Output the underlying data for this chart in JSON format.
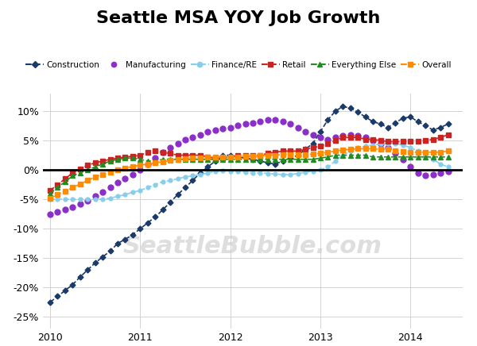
{
  "title": "Seattle MSA YOY Job Growth",
  "background_color": "#ffffff",
  "watermark": "SeattleBubble.com",
  "ylim": [
    -0.27,
    0.13
  ],
  "yticks": [
    -0.25,
    -0.2,
    -0.15,
    -0.1,
    -0.05,
    0.0,
    0.05,
    0.1
  ],
  "xlim": [
    2009.92,
    2014.58
  ],
  "series": {
    "Construction": {
      "color": "#1a3a6b",
      "marker": "D",
      "markersize": 3.5,
      "linestyle": "--",
      "linewidth": 1.2,
      "data_x": [
        2010.0,
        2010.083,
        2010.167,
        2010.25,
        2010.333,
        2010.417,
        2010.5,
        2010.583,
        2010.667,
        2010.75,
        2010.833,
        2010.917,
        2011.0,
        2011.083,
        2011.167,
        2011.25,
        2011.333,
        2011.417,
        2011.5,
        2011.583,
        2011.667,
        2011.75,
        2011.833,
        2011.917,
        2012.0,
        2012.083,
        2012.167,
        2012.25,
        2012.333,
        2012.417,
        2012.5,
        2012.583,
        2012.667,
        2012.75,
        2012.833,
        2012.917,
        2013.0,
        2013.083,
        2013.167,
        2013.25,
        2013.333,
        2013.417,
        2013.5,
        2013.583,
        2013.667,
        2013.75,
        2013.833,
        2013.917,
        2014.0,
        2014.083,
        2014.167,
        2014.25,
        2014.333,
        2014.417
      ],
      "data_y": [
        -0.225,
        -0.215,
        -0.205,
        -0.195,
        -0.182,
        -0.17,
        -0.158,
        -0.148,
        -0.138,
        -0.125,
        -0.118,
        -0.11,
        -0.1,
        -0.09,
        -0.08,
        -0.068,
        -0.055,
        -0.042,
        -0.03,
        -0.018,
        -0.005,
        0.005,
        0.015,
        0.025,
        0.025,
        0.022,
        0.02,
        0.018,
        0.015,
        0.012,
        0.01,
        0.015,
        0.02,
        0.025,
        0.035,
        0.045,
        0.065,
        0.085,
        0.1,
        0.108,
        0.105,
        0.098,
        0.09,
        0.082,
        0.078,
        0.072,
        0.08,
        0.088,
        0.09,
        0.082,
        0.075,
        0.068,
        0.072,
        0.078
      ]
    },
    "Manufacturing": {
      "color": "#8b2fc8",
      "marker": "o",
      "markersize": 5,
      "linestyle": "none",
      "linewidth": 0,
      "data_x": [
        2010.0,
        2010.083,
        2010.167,
        2010.25,
        2010.333,
        2010.417,
        2010.5,
        2010.583,
        2010.667,
        2010.75,
        2010.833,
        2010.917,
        2011.0,
        2011.083,
        2011.167,
        2011.25,
        2011.333,
        2011.417,
        2011.5,
        2011.583,
        2011.667,
        2011.75,
        2011.833,
        2011.917,
        2012.0,
        2012.083,
        2012.167,
        2012.25,
        2012.333,
        2012.417,
        2012.5,
        2012.583,
        2012.667,
        2012.75,
        2012.833,
        2012.917,
        2013.0,
        2013.083,
        2013.167,
        2013.25,
        2013.333,
        2013.417,
        2013.5,
        2013.583,
        2013.667,
        2013.75,
        2013.833,
        2013.917,
        2014.0,
        2014.083,
        2014.167,
        2014.25,
        2014.333,
        2014.417
      ],
      "data_y": [
        -0.075,
        -0.072,
        -0.068,
        -0.063,
        -0.058,
        -0.052,
        -0.045,
        -0.038,
        -0.03,
        -0.022,
        -0.015,
        -0.008,
        0.0,
        0.01,
        0.02,
        0.03,
        0.038,
        0.045,
        0.052,
        0.055,
        0.06,
        0.065,
        0.068,
        0.07,
        0.072,
        0.075,
        0.078,
        0.08,
        0.082,
        0.085,
        0.085,
        0.082,
        0.078,
        0.072,
        0.065,
        0.06,
        0.055,
        0.052,
        0.055,
        0.058,
        0.06,
        0.058,
        0.055,
        0.05,
        0.045,
        0.038,
        0.028,
        0.018,
        0.005,
        -0.005,
        -0.01,
        -0.008,
        -0.005,
        -0.003
      ]
    },
    "Finance/RE": {
      "color": "#87ceeb",
      "marker": "o",
      "markersize": 3.5,
      "linestyle": "--",
      "linewidth": 1.2,
      "data_x": [
        2010.0,
        2010.083,
        2010.167,
        2010.25,
        2010.333,
        2010.417,
        2010.5,
        2010.583,
        2010.667,
        2010.75,
        2010.833,
        2010.917,
        2011.0,
        2011.083,
        2011.167,
        2011.25,
        2011.333,
        2011.417,
        2011.5,
        2011.583,
        2011.667,
        2011.75,
        2011.833,
        2011.917,
        2012.0,
        2012.083,
        2012.167,
        2012.25,
        2012.333,
        2012.417,
        2012.5,
        2012.583,
        2012.667,
        2012.75,
        2012.833,
        2012.917,
        2013.0,
        2013.083,
        2013.167,
        2013.25,
        2013.333,
        2013.417,
        2013.5,
        2013.583,
        2013.667,
        2013.75,
        2013.833,
        2013.917,
        2014.0,
        2014.083,
        2014.167,
        2014.25,
        2014.333,
        2014.417
      ],
      "data_y": [
        -0.05,
        -0.05,
        -0.05,
        -0.05,
        -0.05,
        -0.05,
        -0.05,
        -0.05,
        -0.048,
        -0.045,
        -0.042,
        -0.038,
        -0.035,
        -0.03,
        -0.025,
        -0.02,
        -0.018,
        -0.015,
        -0.012,
        -0.01,
        -0.008,
        -0.005,
        -0.003,
        -0.001,
        -0.002,
        -0.003,
        -0.004,
        -0.005,
        -0.005,
        -0.006,
        -0.007,
        -0.008,
        -0.008,
        -0.006,
        -0.004,
        -0.002,
        0.0,
        0.005,
        0.015,
        0.025,
        0.032,
        0.038,
        0.04,
        0.042,
        0.044,
        0.045,
        0.045,
        0.042,
        0.038,
        0.032,
        0.025,
        0.018,
        0.01,
        0.005
      ]
    },
    "Retail": {
      "color": "#cc2222",
      "marker": "s",
      "markersize": 4.5,
      "linestyle": "--",
      "linewidth": 1.2,
      "data_x": [
        2010.0,
        2010.083,
        2010.167,
        2010.25,
        2010.333,
        2010.417,
        2010.5,
        2010.583,
        2010.667,
        2010.75,
        2010.833,
        2010.917,
        2011.0,
        2011.083,
        2011.167,
        2011.25,
        2011.333,
        2011.417,
        2011.5,
        2011.583,
        2011.667,
        2011.75,
        2011.833,
        2011.917,
        2012.0,
        2012.083,
        2012.167,
        2012.25,
        2012.333,
        2012.417,
        2012.5,
        2012.583,
        2012.667,
        2012.75,
        2012.833,
        2012.917,
        2013.0,
        2013.083,
        2013.167,
        2013.25,
        2013.333,
        2013.417,
        2013.5,
        2013.583,
        2013.667,
        2013.75,
        2013.833,
        2013.917,
        2014.0,
        2014.083,
        2014.167,
        2014.25,
        2014.333,
        2014.417
      ],
      "data_y": [
        -0.035,
        -0.025,
        -0.015,
        -0.005,
        0.002,
        0.008,
        0.012,
        0.015,
        0.018,
        0.02,
        0.022,
        0.023,
        0.025,
        0.03,
        0.032,
        0.03,
        0.028,
        0.025,
        0.025,
        0.025,
        0.025,
        0.022,
        0.02,
        0.02,
        0.022,
        0.025,
        0.025,
        0.025,
        0.025,
        0.028,
        0.03,
        0.032,
        0.032,
        0.032,
        0.035,
        0.038,
        0.04,
        0.045,
        0.05,
        0.055,
        0.055,
        0.055,
        0.052,
        0.052,
        0.05,
        0.048,
        0.048,
        0.048,
        0.048,
        0.048,
        0.05,
        0.052,
        0.055,
        0.06
      ]
    },
    "Everything Else": {
      "color": "#228b22",
      "marker": "^",
      "markersize": 4.5,
      "linestyle": "--",
      "linewidth": 1.2,
      "data_x": [
        2010.0,
        2010.083,
        2010.167,
        2010.25,
        2010.333,
        2010.417,
        2010.5,
        2010.583,
        2010.667,
        2010.75,
        2010.833,
        2010.917,
        2011.0,
        2011.083,
        2011.167,
        2011.25,
        2011.333,
        2011.417,
        2011.5,
        2011.583,
        2011.667,
        2011.75,
        2011.833,
        2011.917,
        2012.0,
        2012.083,
        2012.167,
        2012.25,
        2012.333,
        2012.417,
        2012.5,
        2012.583,
        2012.667,
        2012.75,
        2012.833,
        2012.917,
        2013.0,
        2013.083,
        2013.167,
        2013.25,
        2013.333,
        2013.417,
        2013.5,
        2013.583,
        2013.667,
        2013.75,
        2013.833,
        2013.917,
        2014.0,
        2014.083,
        2014.167,
        2014.25,
        2014.333,
        2014.417
      ],
      "data_y": [
        -0.04,
        -0.03,
        -0.02,
        -0.01,
        -0.005,
        0.0,
        0.005,
        0.01,
        0.015,
        0.018,
        0.02,
        0.02,
        0.018,
        0.015,
        0.015,
        0.018,
        0.018,
        0.018,
        0.018,
        0.018,
        0.018,
        0.018,
        0.018,
        0.018,
        0.018,
        0.018,
        0.018,
        0.018,
        0.018,
        0.018,
        0.018,
        0.018,
        0.018,
        0.018,
        0.018,
        0.018,
        0.02,
        0.022,
        0.025,
        0.025,
        0.025,
        0.025,
        0.025,
        0.022,
        0.022,
        0.022,
        0.022,
        0.022,
        0.022,
        0.022,
        0.022,
        0.022,
        0.022,
        0.022
      ]
    },
    "Overall": {
      "color": "#ff8c00",
      "marker": "s",
      "markersize": 4.5,
      "linestyle": "--",
      "linewidth": 1.2,
      "data_x": [
        2010.0,
        2010.083,
        2010.167,
        2010.25,
        2010.333,
        2010.417,
        2010.5,
        2010.583,
        2010.667,
        2010.75,
        2010.833,
        2010.917,
        2011.0,
        2011.083,
        2011.167,
        2011.25,
        2011.333,
        2011.417,
        2011.5,
        2011.583,
        2011.667,
        2011.75,
        2011.833,
        2011.917,
        2012.0,
        2012.083,
        2012.167,
        2012.25,
        2012.333,
        2012.417,
        2012.5,
        2012.583,
        2012.667,
        2012.75,
        2012.833,
        2012.917,
        2013.0,
        2013.083,
        2013.167,
        2013.25,
        2013.333,
        2013.417,
        2013.5,
        2013.583,
        2013.667,
        2013.75,
        2013.833,
        2013.917,
        2014.0,
        2014.083,
        2014.167,
        2014.25,
        2014.333,
        2014.417
      ],
      "data_y": [
        -0.048,
        -0.042,
        -0.036,
        -0.03,
        -0.024,
        -0.018,
        -0.012,
        -0.008,
        -0.004,
        0.0,
        0.003,
        0.006,
        0.008,
        0.01,
        0.012,
        0.014,
        0.016,
        0.018,
        0.019,
        0.02,
        0.021,
        0.022,
        0.022,
        0.022,
        0.022,
        0.022,
        0.023,
        0.023,
        0.024,
        0.025,
        0.025,
        0.026,
        0.026,
        0.026,
        0.026,
        0.027,
        0.028,
        0.03,
        0.032,
        0.034,
        0.035,
        0.036,
        0.036,
        0.036,
        0.035,
        0.035,
        0.033,
        0.031,
        0.03,
        0.03,
        0.03,
        0.03,
        0.03,
        0.032
      ]
    }
  }
}
